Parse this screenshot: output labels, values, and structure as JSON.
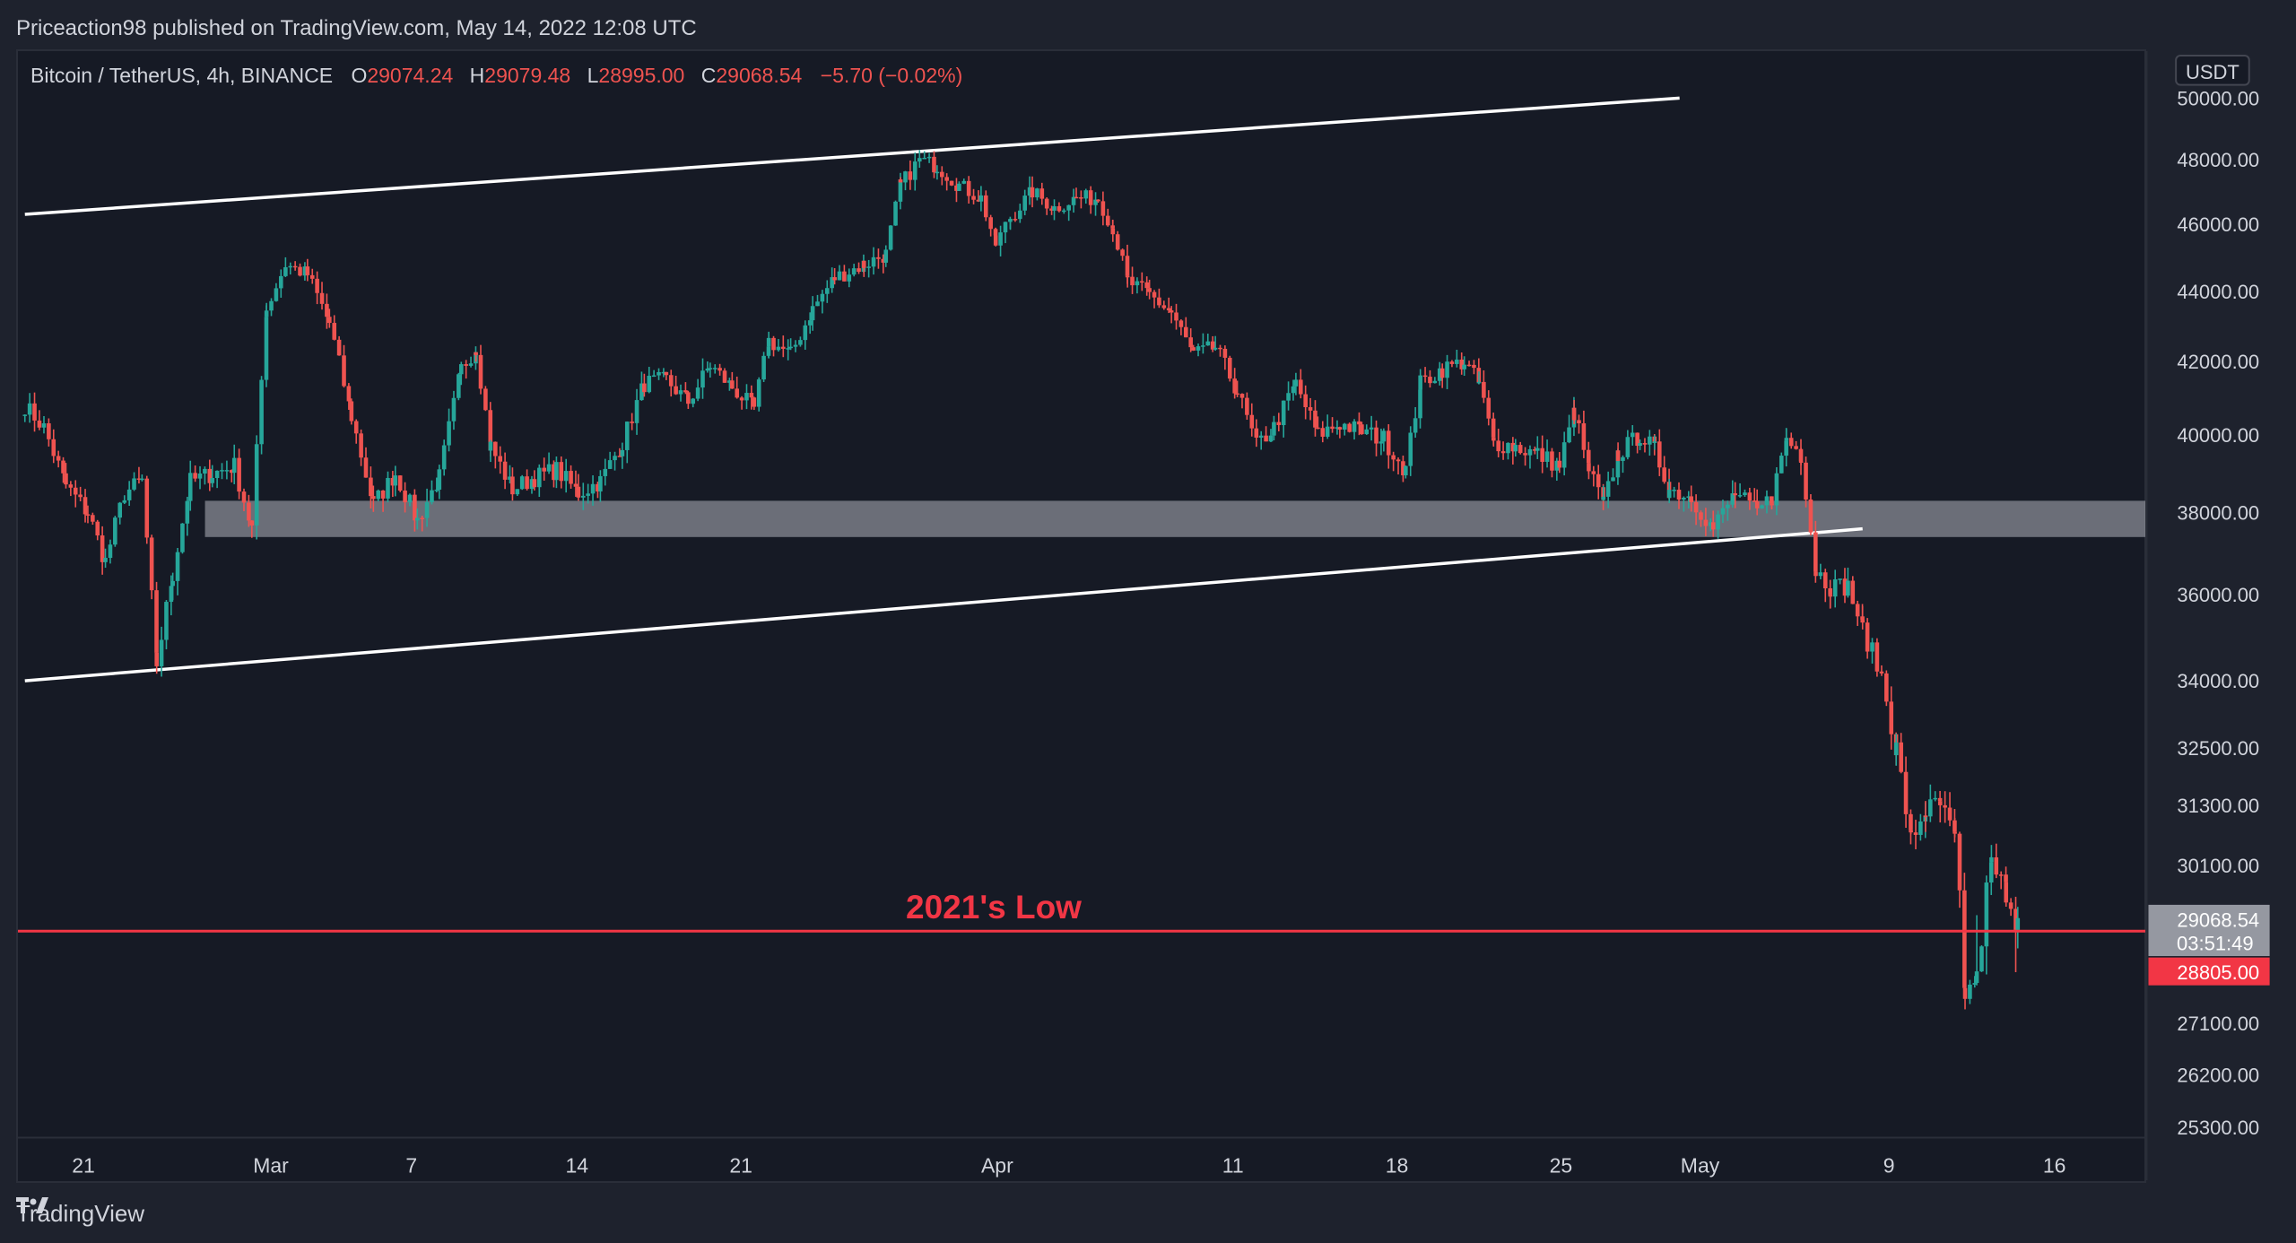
{
  "header": {
    "publisher": "Priceaction98",
    "published_on": "published on TradingView.com,",
    "date": "May 14, 2022 12:08 UTC"
  },
  "symbol_line": {
    "symbol": "Bitcoin / TetherUS, 4h, BINANCE",
    "o_label": "O",
    "o_value": "29074.24",
    "h_label": "H",
    "h_value": "29079.48",
    "l_label": "L",
    "l_value": "28995.00",
    "c_label": "C",
    "c_value": "29068.54",
    "change": "−5.70 (−0.02%)"
  },
  "colors": {
    "up": "#26a69a",
    "down": "#ef5350",
    "text": "#d1d4dc",
    "support_line": "#f23645",
    "zone": "#9598a1",
    "channel": "#ffffff"
  },
  "annotation": {
    "text": "2021's Low"
  },
  "footer": {
    "brand": "TradingView"
  },
  "chart_data": {
    "type": "candlestick",
    "currency": "USDT",
    "y_ticks": [
      "50000.00",
      "48000.00",
      "46000.00",
      "44000.00",
      "42000.00",
      "40000.00",
      "38000.00",
      "36000.00",
      "34000.00",
      "32500.00",
      "31300.00",
      "30100.00",
      "27100.00",
      "26200.00",
      "25300.00"
    ],
    "x_ticks": [
      "21",
      "Mar",
      "7",
      "14",
      "21",
      "Apr",
      "11",
      "18",
      "25",
      "May",
      "9",
      "16"
    ],
    "last_price": "29068.54",
    "countdown": "03:51:49",
    "support_price": "28805.00",
    "support_level": 28805,
    "support_zone": [
      37400,
      38300
    ],
    "channel_upper": [
      [
        17,
        46300
      ],
      [
        1147,
        50000
      ]
    ],
    "channel_lower": [
      [
        17,
        34000
      ],
      [
        1272,
        37600
      ]
    ],
    "path": [
      [
        17,
        40800
      ],
      [
        30,
        40200
      ],
      [
        45,
        38700
      ],
      [
        60,
        38000
      ],
      [
        72,
        36800
      ],
      [
        85,
        38500
      ],
      [
        97,
        38800
      ],
      [
        107,
        34400
      ],
      [
        118,
        36500
      ],
      [
        130,
        38800
      ],
      [
        145,
        39000
      ],
      [
        160,
        39200
      ],
      [
        172,
        37600
      ],
      [
        182,
        43500
      ],
      [
        195,
        44800
      ],
      [
        210,
        44500
      ],
      [
        225,
        43100
      ],
      [
        240,
        40500
      ],
      [
        255,
        38200
      ],
      [
        270,
        39000
      ],
      [
        285,
        37800
      ],
      [
        300,
        38900
      ],
      [
        315,
        41800
      ],
      [
        325,
        42400
      ],
      [
        335,
        39700
      ],
      [
        350,
        38600
      ],
      [
        365,
        38900
      ],
      [
        380,
        39100
      ],
      [
        395,
        38500
      ],
      [
        410,
        38800
      ],
      [
        425,
        39800
      ],
      [
        440,
        41400
      ],
      [
        455,
        41500
      ],
      [
        470,
        40900
      ],
      [
        485,
        41900
      ],
      [
        500,
        41300
      ],
      [
        515,
        40700
      ],
      [
        525,
        42600
      ],
      [
        540,
        42200
      ],
      [
        555,
        43500
      ],
      [
        570,
        44400
      ],
      [
        590,
        44800
      ],
      [
        605,
        45100
      ],
      [
        615,
        47200
      ],
      [
        628,
        48000
      ],
      [
        640,
        47800
      ],
      [
        655,
        47200
      ],
      [
        670,
        46800
      ],
      [
        680,
        45400
      ],
      [
        690,
        46200
      ],
      [
        705,
        47000
      ],
      [
        720,
        46500
      ],
      [
        735,
        46800
      ],
      [
        750,
        46800
      ],
      [
        760,
        45900
      ],
      [
        770,
        44300
      ],
      [
        785,
        43900
      ],
      [
        800,
        43400
      ],
      [
        815,
        42200
      ],
      [
        830,
        42400
      ],
      [
        845,
        41200
      ],
      [
        858,
        39700
      ],
      [
        870,
        40200
      ],
      [
        885,
        41400
      ],
      [
        900,
        40000
      ],
      [
        915,
        40300
      ],
      [
        930,
        40100
      ],
      [
        945,
        39900
      ],
      [
        960,
        39100
      ],
      [
        970,
        41400
      ],
      [
        985,
        41800
      ],
      [
        1000,
        42000
      ],
      [
        1010,
        41400
      ],
      [
        1020,
        39800
      ],
      [
        1035,
        39700
      ],
      [
        1050,
        39500
      ],
      [
        1065,
        39200
      ],
      [
        1075,
        40600
      ],
      [
        1085,
        39100
      ],
      [
        1095,
        38200
      ],
      [
        1105,
        39500
      ],
      [
        1120,
        40000
      ],
      [
        1130,
        39600
      ],
      [
        1140,
        38600
      ],
      [
        1155,
        38400
      ],
      [
        1170,
        37600
      ],
      [
        1185,
        38500
      ],
      [
        1200,
        38000
      ],
      [
        1210,
        38400
      ],
      [
        1220,
        39900
      ],
      [
        1230,
        39500
      ],
      [
        1240,
        36600
      ],
      [
        1250,
        36200
      ],
      [
        1262,
        36200
      ],
      [
        1272,
        35200
      ],
      [
        1285,
        34100
      ],
      [
        1295,
        32500
      ],
      [
        1305,
        30600
      ],
      [
        1315,
        31200
      ],
      [
        1325,
        31300
      ],
      [
        1335,
        30600
      ],
      [
        1342,
        28000
      ],
      [
        1350,
        28600
      ],
      [
        1360,
        30100
      ],
      [
        1370,
        29600
      ],
      [
        1378,
        29068
      ]
    ]
  }
}
